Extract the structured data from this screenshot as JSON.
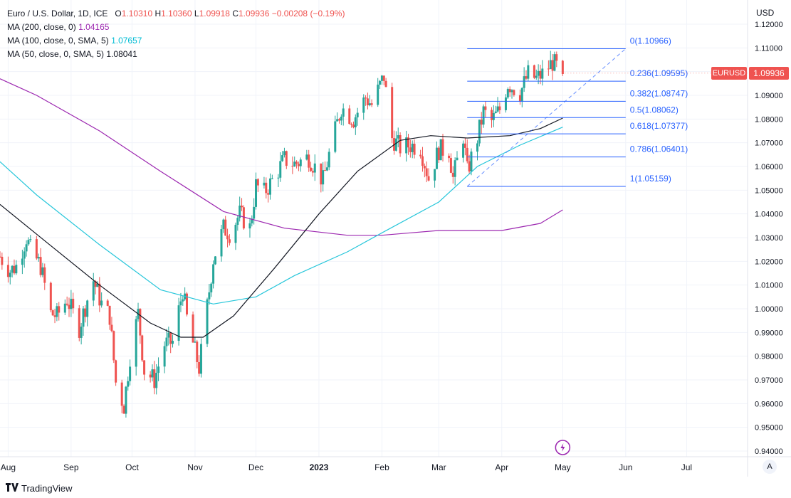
{
  "legend": {
    "symbol_title": "Euro / U.S. Dollar, 1D, ICE",
    "ohlc": {
      "o_label": "O",
      "o": "1.10310",
      "h_label": "H",
      "h": "1.10360",
      "l_label": "L",
      "l": "1.09918",
      "c_label": "C",
      "c": "1.09936",
      "change": "−0.00208 (−0.19%)"
    },
    "ma200": {
      "label": "MA (200, close, 0)",
      "value": "1.04165",
      "color": "#9c27b0"
    },
    "ma100": {
      "label": "MA (100, close, 0, SMA, 5)",
      "value": "1.07657",
      "color": "#26c6da"
    },
    "ma50": {
      "label": "MA (50, close, 0, SMA, 5)",
      "value": "1.08041",
      "color": "#131722"
    }
  },
  "axis": {
    "unit": "USD",
    "scale_button": "A"
  },
  "price_tag": {
    "symbol": "EURUSD",
    "value": "1.09936"
  },
  "brand": {
    "logo_icon": "tradingview-logo-icon",
    "name": "TradingView"
  },
  "chart_data": {
    "type": "candlestick",
    "colors": {
      "up": "#26a69a",
      "down": "#ef5350",
      "grid": "#f0f3fa",
      "fib": "#2962ff"
    },
    "y_ticks": [
      "0.94000",
      "0.95000",
      "0.96000",
      "0.97000",
      "0.98000",
      "0.99000",
      "1.00000",
      "1.01000",
      "1.02000",
      "1.03000",
      "1.04000",
      "1.05000",
      "1.06000",
      "1.07000",
      "1.08000",
      "1.09000",
      "1.10000",
      "1.11000",
      "1.12000"
    ],
    "ylim": [
      0.94,
      1.12
    ],
    "x_ticks": [
      {
        "label": "Aug",
        "date": "2022-08-01"
      },
      {
        "label": "Sep",
        "date": "2022-09-01"
      },
      {
        "label": "Oct",
        "date": "2022-10-01"
      },
      {
        "label": "Nov",
        "date": "2022-11-01"
      },
      {
        "label": "Dec",
        "date": "2022-12-01"
      },
      {
        "label": "2023",
        "date": "2023-01-01",
        "bold": true
      },
      {
        "label": "Feb",
        "date": "2023-02-01"
      },
      {
        "label": "Mar",
        "date": "2023-03-01"
      },
      {
        "label": "Apr",
        "date": "2023-04-01"
      },
      {
        "label": "May",
        "date": "2023-05-01"
      },
      {
        "label": "Jun",
        "date": "2023-06-01"
      },
      {
        "label": "Jul",
        "date": "2023-07-01"
      }
    ],
    "xlim": [
      "2022-07-28",
      "2023-07-31"
    ],
    "price_path": [
      [
        "2022-07-28",
        1.022
      ],
      [
        "2022-08-02",
        1.016
      ],
      [
        "2022-08-05",
        1.018
      ],
      [
        "2022-08-10",
        1.03
      ],
      [
        "2022-08-12",
        1.025
      ],
      [
        "2022-08-17",
        1.018
      ],
      [
        "2022-08-22",
        0.998
      ],
      [
        "2022-08-25",
        0.997
      ],
      [
        "2022-08-30",
        1.004
      ],
      [
        "2022-09-05",
        0.992
      ],
      [
        "2022-09-09",
        1.004
      ],
      [
        "2022-09-12",
        1.012
      ],
      [
        "2022-09-16",
        1.002
      ],
      [
        "2022-09-20",
        0.997
      ],
      [
        "2022-09-23",
        0.969
      ],
      [
        "2022-09-27",
        0.959
      ],
      [
        "2022-09-30",
        0.98
      ],
      [
        "2022-10-04",
        0.998
      ],
      [
        "2022-10-07",
        0.974
      ],
      [
        "2022-10-12",
        0.97
      ],
      [
        "2022-10-17",
        0.985
      ],
      [
        "2022-10-21",
        0.986
      ],
      [
        "2022-10-26",
        1.008
      ],
      [
        "2022-10-28",
        0.996
      ],
      [
        "2022-11-03",
        0.975
      ],
      [
        "2022-11-07",
        1.001
      ],
      [
        "2022-11-10",
        1.021
      ],
      [
        "2022-11-15",
        1.034
      ],
      [
        "2022-11-18",
        1.032
      ],
      [
        "2022-11-23",
        1.04
      ],
      [
        "2022-11-28",
        1.034
      ],
      [
        "2022-12-01",
        1.052
      ],
      [
        "2022-12-05",
        1.049
      ],
      [
        "2022-12-09",
        1.054
      ],
      [
        "2022-12-15",
        1.063
      ],
      [
        "2022-12-20",
        1.061
      ],
      [
        "2022-12-27",
        1.064
      ],
      [
        "2023-01-03",
        1.054
      ],
      [
        "2023-01-06",
        1.065
      ],
      [
        "2023-01-12",
        1.085
      ],
      [
        "2023-01-18",
        1.08
      ],
      [
        "2023-01-24",
        1.089
      ],
      [
        "2023-01-27",
        1.086
      ],
      [
        "2023-02-02",
        1.098
      ],
      [
        "2023-02-06",
        1.072
      ],
      [
        "2023-02-10",
        1.068
      ],
      [
        "2023-02-15",
        1.069
      ],
      [
        "2023-02-20",
        1.068
      ],
      [
        "2023-02-24",
        1.055
      ],
      [
        "2023-03-01",
        1.067
      ],
      [
        "2023-03-06",
        1.067
      ],
      [
        "2023-03-08",
        1.055
      ],
      [
        "2023-03-13",
        1.073
      ],
      [
        "2023-03-15",
        1.058
      ],
      [
        "2023-03-20",
        1.072
      ],
      [
        "2023-03-23",
        1.083
      ],
      [
        "2023-03-27",
        1.079
      ],
      [
        "2023-03-31",
        1.084
      ],
      [
        "2023-04-04",
        1.095
      ],
      [
        "2023-04-10",
        1.091
      ],
      [
        "2023-04-14",
        1.099
      ],
      [
        "2023-04-18",
        1.097
      ],
      [
        "2023-04-21",
        1.099
      ],
      [
        "2023-04-26",
        1.104
      ],
      [
        "2023-04-28",
        1.102
      ],
      [
        "2023-05-01",
        1.099
      ]
    ],
    "ma200": [
      [
        "2022-07-28",
        1.097
      ],
      [
        "2022-08-15",
        1.09
      ],
      [
        "2022-09-15",
        1.075
      ],
      [
        "2022-10-15",
        1.058
      ],
      [
        "2022-11-15",
        1.041
      ],
      [
        "2022-12-15",
        1.034
      ],
      [
        "2023-01-15",
        1.031
      ],
      [
        "2023-02-01",
        1.031
      ],
      [
        "2023-02-15",
        1.032
      ],
      [
        "2023-03-01",
        1.033
      ],
      [
        "2023-04-01",
        1.033
      ],
      [
        "2023-04-20",
        1.036
      ],
      [
        "2023-05-01",
        1.0417
      ]
    ],
    "ma100": [
      [
        "2022-07-28",
        1.062
      ],
      [
        "2022-08-15",
        1.048
      ],
      [
        "2022-09-15",
        1.027
      ],
      [
        "2022-10-15",
        1.008
      ],
      [
        "2022-11-10",
        1.002
      ],
      [
        "2022-12-01",
        1.005
      ],
      [
        "2022-12-20",
        1.014
      ],
      [
        "2023-01-15",
        1.024
      ],
      [
        "2023-02-01",
        1.032
      ],
      [
        "2023-03-01",
        1.045
      ],
      [
        "2023-03-20",
        1.06
      ],
      [
        "2023-04-10",
        1.069
      ],
      [
        "2023-05-01",
        1.0766
      ]
    ],
    "ma50": [
      [
        "2022-07-28",
        1.044
      ],
      [
        "2022-08-20",
        1.028
      ],
      [
        "2022-09-15",
        1.01
      ],
      [
        "2022-10-10",
        0.994
      ],
      [
        "2022-10-25",
        0.988
      ],
      [
        "2022-11-05",
        0.988
      ],
      [
        "2022-11-20",
        0.997
      ],
      [
        "2022-12-10",
        1.017
      ],
      [
        "2023-01-01",
        1.04
      ],
      [
        "2023-01-20",
        1.058
      ],
      [
        "2023-02-10",
        1.071
      ],
      [
        "2023-02-25",
        1.073
      ],
      [
        "2023-03-15",
        1.072
      ],
      [
        "2023-04-05",
        1.073
      ],
      [
        "2023-04-20",
        1.076
      ],
      [
        "2023-05-01",
        1.0804
      ]
    ],
    "fibonacci": {
      "start": "2023-03-15",
      "end": "2023-06-01",
      "levels": [
        {
          "label": "0(1.10966)",
          "value": 1.10966
        },
        {
          "label": "0.236(1.09595)",
          "value": 1.09595
        },
        {
          "label": "0.382(1.08747)",
          "value": 1.08747
        },
        {
          "label": "0.5(1.08062)",
          "value": 1.08062
        },
        {
          "label": "0.618(1.07377)",
          "value": 1.07377
        },
        {
          "label": "0.786(1.06401)",
          "value": 1.06401
        },
        {
          "label": "1(1.05159)",
          "value": 1.05159
        }
      ],
      "trend_line": {
        "from": [
          "2023-03-15",
          1.05159
        ],
        "to": [
          "2023-06-01",
          1.10966
        ]
      }
    },
    "event_icon": {
      "name": "lightning-icon",
      "date": "2023-05-01"
    }
  }
}
